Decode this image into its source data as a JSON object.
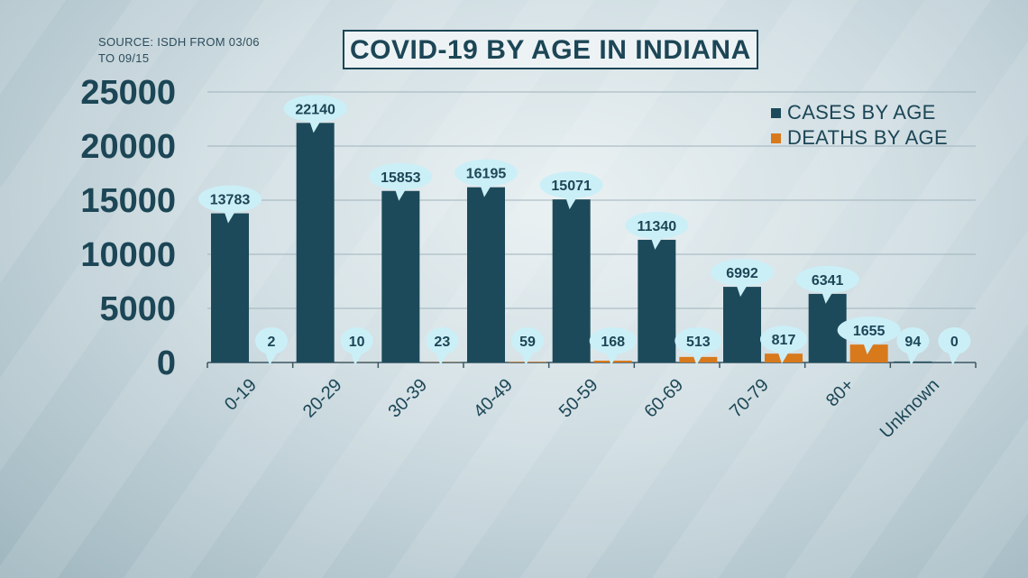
{
  "source": "SOURCE: ISDH FROM 03/06 TO 09/15",
  "colors": {
    "cases": "#1c4a5a",
    "deaths": "#d8791c",
    "bubble": "#cbeff7",
    "text": "#1c4656"
  },
  "chart_data": {
    "type": "bar",
    "title": "COVID-19 BY AGE IN INDIANA",
    "xlabel": "",
    "ylabel": "",
    "ylim": [
      0,
      25000
    ],
    "yticks": [
      0,
      5000,
      10000,
      15000,
      20000,
      25000
    ],
    "grid": true,
    "legend_position": "top-right",
    "categories": [
      "0-19",
      "20-29",
      "30-39",
      "40-49",
      "50-59",
      "60-69",
      "70-79",
      "80+",
      "Unknown"
    ],
    "series": [
      {
        "name": "CASES BY AGE",
        "values": [
          13783,
          22140,
          15853,
          16195,
          15071,
          11340,
          6992,
          6341,
          94
        ]
      },
      {
        "name": "DEATHS BY AGE",
        "values": [
          2,
          10,
          23,
          59,
          168,
          513,
          817,
          1655,
          0
        ]
      }
    ]
  }
}
